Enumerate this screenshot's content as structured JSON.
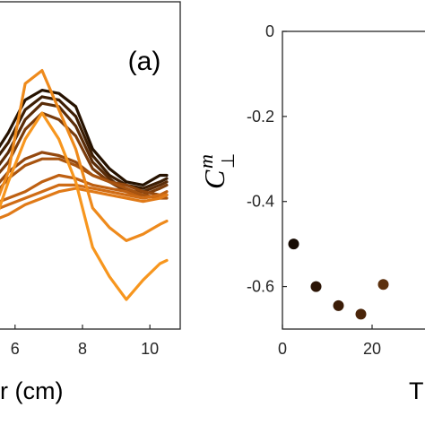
{
  "chart_data": [
    {
      "type": "line",
      "panel_label": "(a)",
      "xlabel": "r (cm)",
      "x_ticks": [
        "6",
        "8",
        "10"
      ],
      "xlim": [
        5.5,
        10.9
      ],
      "ylim": [
        0,
        1
      ],
      "y_ticks": [],
      "grid": false,
      "legend": "none",
      "x": [
        5.3,
        5.8,
        6.3,
        6.8,
        7.3,
        7.8,
        8.3,
        8.8,
        9.3,
        9.8,
        10.3,
        10.5
      ],
      "series": [
        {
          "color": "#261200",
          "values": [
            0.52,
            0.6,
            0.7,
            0.73,
            0.72,
            0.68,
            0.55,
            0.49,
            0.45,
            0.44,
            0.47,
            0.47
          ]
        },
        {
          "color": "#3d1e04",
          "values": [
            0.5,
            0.57,
            0.67,
            0.71,
            0.7,
            0.65,
            0.53,
            0.47,
            0.44,
            0.43,
            0.45,
            0.46
          ]
        },
        {
          "color": "#5a2c08",
          "values": [
            0.47,
            0.54,
            0.64,
            0.69,
            0.68,
            0.62,
            0.51,
            0.46,
            0.42,
            0.42,
            0.44,
            0.45
          ]
        },
        {
          "color": "#7a3c0c",
          "values": [
            0.45,
            0.51,
            0.61,
            0.66,
            0.64,
            0.59,
            0.49,
            0.45,
            0.42,
            0.41,
            0.43,
            0.44
          ]
        },
        {
          "color": "#94480e",
          "values": [
            0.42,
            0.48,
            0.52,
            0.54,
            0.53,
            0.51,
            0.47,
            0.45,
            0.44,
            0.42,
            0.41,
            0.41
          ]
        },
        {
          "color": "#a85410",
          "values": [
            0.4,
            0.46,
            0.5,
            0.52,
            0.52,
            0.5,
            0.47,
            0.45,
            0.43,
            0.41,
            0.4,
            0.4
          ]
        },
        {
          "color": "#be6012",
          "values": [
            0.38,
            0.4,
            0.42,
            0.45,
            0.47,
            0.46,
            0.44,
            0.43,
            0.42,
            0.4,
            0.41,
            0.42
          ]
        },
        {
          "color": "#cf6c16",
          "values": [
            0.36,
            0.38,
            0.4,
            0.42,
            0.44,
            0.44,
            0.43,
            0.42,
            0.41,
            0.4,
            0.41,
            0.41
          ]
        },
        {
          "color": "#e07a18",
          "values": [
            0.33,
            0.35,
            0.38,
            0.4,
            0.42,
            0.43,
            0.42,
            0.41,
            0.4,
            0.39,
            0.4,
            0.41
          ]
        },
        {
          "color": "#ee8a1c",
          "values": [
            0.35,
            0.48,
            0.75,
            0.79,
            0.67,
            0.55,
            0.37,
            0.31,
            0.27,
            0.29,
            0.32,
            0.33
          ]
        },
        {
          "color": "#f7961e",
          "values": [
            0.3,
            0.45,
            0.58,
            0.66,
            0.58,
            0.45,
            0.25,
            0.16,
            0.09,
            0.15,
            0.2,
            0.21
          ]
        }
      ]
    },
    {
      "type": "scatter",
      "ylabel_main": "C",
      "ylabel_sup": "m",
      "ylabel_sub": "⊥",
      "xlabel": "T",
      "x_ticks": [
        "0",
        "20"
      ],
      "y_ticks": [
        "0",
        "-0.2",
        "-0.4",
        "-0.6"
      ],
      "xlim": [
        0,
        34
      ],
      "ylim": [
        -0.7,
        0
      ],
      "grid": false,
      "legend": "none",
      "points": [
        {
          "x": 2.5,
          "y": -0.5,
          "color": "#170b03"
        },
        {
          "x": 7.5,
          "y": -0.6,
          "color": "#2b1405"
        },
        {
          "x": 12.5,
          "y": -0.645,
          "color": "#3b1c07"
        },
        {
          "x": 17.5,
          "y": -0.665,
          "color": "#4a2509"
        },
        {
          "x": 22.5,
          "y": -0.595,
          "color": "#5c300d"
        }
      ]
    }
  ]
}
